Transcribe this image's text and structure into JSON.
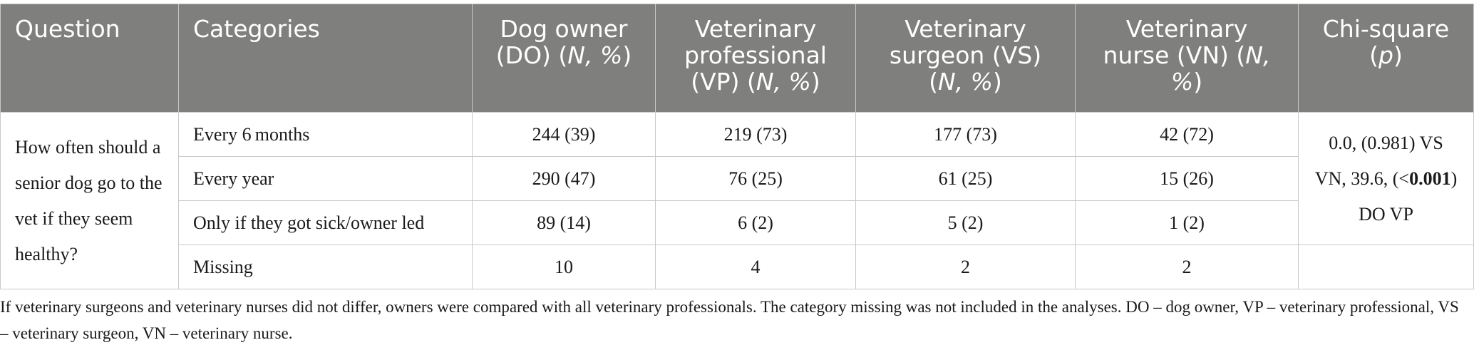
{
  "headers": {
    "question": "Question",
    "categories": "Categories",
    "do_main": "Dog owner (DO) (",
    "do_stat": "N, %",
    "do_end": ")",
    "vp_main": "Veterinary professional (VP) (",
    "vp_stat": "N, %",
    "vp_end": ")",
    "vs_main": "Veterinary surgeon (VS) (",
    "vs_stat": "N, %",
    "vs_end": ")",
    "vn_main": "Veterinary nurse (VN) (",
    "vn_stat": "N, %",
    "vn_end": ")",
    "chi_main": "Chi-square (",
    "chi_stat": "p",
    "chi_end": ")"
  },
  "question": "How often should a senior dog go to the vet if they seem healthy?",
  "rows": [
    {
      "category": "Every 6 months",
      "do": "244 (39)",
      "vp": "219 (73)",
      "vs": "177 (73)",
      "vn": "42 (72)"
    },
    {
      "category": "Every year",
      "do": "290 (47)",
      "vp": "76 (25)",
      "vs": "61 (25)",
      "vn": "15 (26)"
    },
    {
      "category": "Only if they got sick/owner led",
      "do": "89 (14)",
      "vp": "6 (2)",
      "vs": "5 (2)",
      "vn": "1 (2)"
    },
    {
      "category": "Missing",
      "do": "10",
      "vp": "4",
      "vs": "2",
      "vn": "2"
    }
  ],
  "chi_square": {
    "part1": "0.0, (0.981) VS VN, 39.6, (<",
    "bold": "0.001",
    "part2": ") DO VP"
  },
  "footnote": "If veterinary surgeons and veterinary nurses did not differ, owners were compared with all veterinary professionals. The category missing was not included in the analyses. DO – dog owner, VP – veterinary professional, VS – veterinary surgeon, VN – veterinary nurse."
}
